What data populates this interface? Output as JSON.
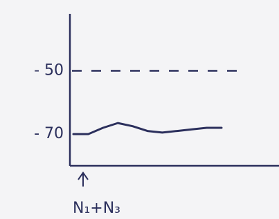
{
  "chart_data": {
    "type": "line",
    "categories": [
      null,
      null,
      null,
      null,
      null,
      null,
      null,
      null,
      null,
      null,
      null
    ],
    "series": [
      {
        "color": "#2b2f5c",
        "values": [
          -70,
          -70,
          -68,
          -66.5,
          -67.5,
          -69,
          -69.5,
          -69,
          -68.5,
          -68,
          -68
        ]
      }
    ],
    "ylim": [
      -80,
      -32
    ],
    "yticks": [
      {
        "value": -50,
        "label": "- 50"
      },
      {
        "value": -70,
        "label": "- 70"
      }
    ],
    "reference_line": {
      "value": -50,
      "style": "dashed"
    },
    "annotation": "N₁+N₃"
  }
}
